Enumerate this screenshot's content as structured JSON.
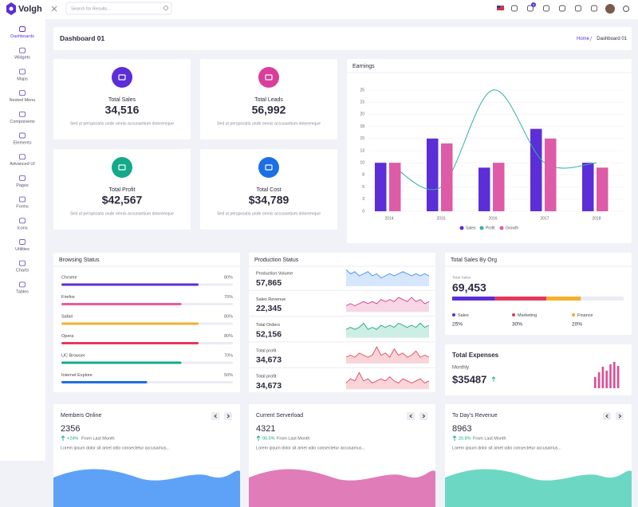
{
  "header": {
    "brand": "Volgh",
    "search_placeholder": "Search for Results...",
    "cart_badge": "5"
  },
  "sidebar": {
    "items": [
      "Dashboards",
      "Widgets",
      "Maps",
      "Nested Menu",
      "Components",
      "Elements",
      "Advanced UI",
      "Pages",
      "Forms",
      "Icons",
      "Utilities",
      "Charts",
      "Tables"
    ]
  },
  "page": {
    "title": "Dashboard 01",
    "breadcrumb": [
      "Home",
      "Dashboard 01"
    ]
  },
  "stats": [
    {
      "title": "Total Sales",
      "value": "34,516",
      "text": "Sed ut perspiciatis unde omnis accusantium doloremque",
      "color": "#5b2ed8"
    },
    {
      "title": "Total Leads",
      "value": "56,992",
      "text": "Sed ut perspiciatis unde omnis accusantium doloremque",
      "color": "#d83e9a"
    },
    {
      "title": "Total Profit",
      "value": "$42,567",
      "text": "Sed ut perspiciatis unde omnis accusantium doloremque",
      "color": "#14a98b"
    },
    {
      "title": "Total Cost",
      "value": "$34,789",
      "text": "Sed ut perspiciatis unde omnis accusantium doloremque",
      "color": "#1d6fe6"
    }
  ],
  "earnings": {
    "type": "bar",
    "title": "Earnings",
    "categories": [
      "2014",
      "2015",
      "2016",
      "2017",
      "2018"
    ],
    "series": [
      {
        "name": "Sales",
        "type": "bar",
        "color": "#5b2ed8",
        "values": [
          10,
          15,
          9,
          17,
          10
        ]
      },
      {
        "name": "Profit",
        "type": "line",
        "color": "#35b0a8",
        "values": [
          10,
          5,
          25,
          10,
          10
        ]
      },
      {
        "name": "Growth",
        "type": "bar",
        "color": "#dd5ba7",
        "values": [
          10,
          14,
          10,
          15,
          9
        ]
      }
    ],
    "ylim": [
      0,
      25
    ],
    "yticks": [
      0,
      {
        "value": 2.5,
        "label": "3"
      },
      5,
      {
        "value": 7.5,
        "label": "8"
      },
      10,
      {
        "value": 12.5,
        "label": "13"
      },
      15,
      {
        "value": 17.5,
        "label": "18"
      },
      20,
      {
        "value": 22.5,
        "label": "23"
      },
      25
    ],
    "grid": true
  },
  "browsing": {
    "title": "Browsing Status",
    "items": [
      {
        "name": "Chrome",
        "value": 80,
        "label": "80%",
        "color": "#5b2ed8"
      },
      {
        "name": "Firefox",
        "value": 70,
        "label": "70%",
        "color": "#ee5ba0"
      },
      {
        "name": "Safari",
        "value": 80,
        "label": "80%",
        "color": "#f2b12c"
      },
      {
        "name": "Opera",
        "value": 80,
        "label": "80%",
        "color": "#e8385a"
      },
      {
        "name": "UC Browser",
        "value": 70,
        "label": "70%",
        "color": "#14a98b"
      },
      {
        "name": "Internet Explore",
        "value": 50,
        "label": "50%",
        "color": "#1d6fe6"
      }
    ]
  },
  "production": {
    "title": "Production Status",
    "spark_ylim": [
      0,
      10
    ],
    "items": [
      {
        "label": "Production Volume",
        "value": "57,865",
        "color": "#3a8ef6",
        "fill": "#d6e6fd",
        "spark": [
          8,
          6,
          7,
          5,
          6,
          7,
          5,
          6,
          4,
          5,
          6,
          5,
          6,
          7,
          6,
          5,
          6,
          5,
          6,
          5
        ]
      },
      {
        "label": "Sales Revenue",
        "value": "22,345",
        "color": "#d63c8a",
        "fill": "#f7d6e6",
        "spark": [
          3,
          4,
          3,
          4,
          5,
          4,
          5,
          4,
          6,
          5,
          6,
          5,
          7,
          6,
          5,
          7,
          5,
          6,
          4,
          5
        ]
      },
      {
        "label": "Total Orders",
        "value": "52,156",
        "color": "#1aa886",
        "fill": "#cdeee5",
        "spark": [
          4,
          5,
          4,
          5,
          7,
          4,
          5,
          4,
          6,
          5,
          6,
          5,
          7,
          6,
          5,
          6,
          5,
          7,
          5,
          6
        ]
      },
      {
        "label": "Total profit",
        "value": "34,673",
        "color": "#e5485b",
        "fill": "#f9d4d8",
        "spark": [
          3,
          4,
          3,
          5,
          4,
          3,
          4,
          8,
          4,
          5,
          3,
          7,
          4,
          5,
          3,
          4,
          6,
          3,
          4,
          3
        ]
      },
      {
        "label": "Total profit",
        "value": "34,673",
        "color": "#e5485b",
        "fill": "#f9d4d8",
        "spark": [
          3,
          5,
          4,
          8,
          4,
          5,
          3,
          4,
          5,
          4,
          6,
          4,
          3,
          5,
          4,
          3,
          4,
          5,
          3,
          4
        ]
      }
    ]
  },
  "org_sales": {
    "title": "Total Sales By Org",
    "subtitle": "Total Sales",
    "value": "69,453",
    "segments": [
      {
        "name": "Sales",
        "value": 25,
        "label": "25%",
        "color": "#5b2ed8"
      },
      {
        "name": "Marketing",
        "value": 30,
        "label": "30%",
        "color": "#e8385a"
      },
      {
        "name": "Finance",
        "value": 20,
        "label": "20%",
        "color": "#f2b12c"
      }
    ]
  },
  "expenses": {
    "title": "Total Expenses",
    "subtitle": "Monthly",
    "value": "$35487",
    "color": "#dd4c95",
    "bars": [
      14,
      20,
      27,
      22,
      30,
      33,
      28
    ],
    "ylim": [
      0,
      35
    ]
  },
  "bottom": [
    {
      "title": "Members Online",
      "value": "2356",
      "change": "+24%",
      "change_text": "From Last Month",
      "text": "Lorem ipsum dolor sit amet odio consectetur accusamus...",
      "color": "#5da2f7"
    },
    {
      "title": "Current Serverload",
      "value": "4321",
      "change": "90.5%",
      "change_text": "From Last Month",
      "text": "Lorem ipsum dolor sit amet odio consectetur accusamus...",
      "color": "#e07cb8"
    },
    {
      "title": "To Day's Revenue",
      "value": "8963",
      "change": "20.8%",
      "change_text": "From Last Month",
      "text": "Lorem ipsum dolor sit amet odio consectetur accusamus...",
      "color": "#6cd8c4"
    }
  ]
}
